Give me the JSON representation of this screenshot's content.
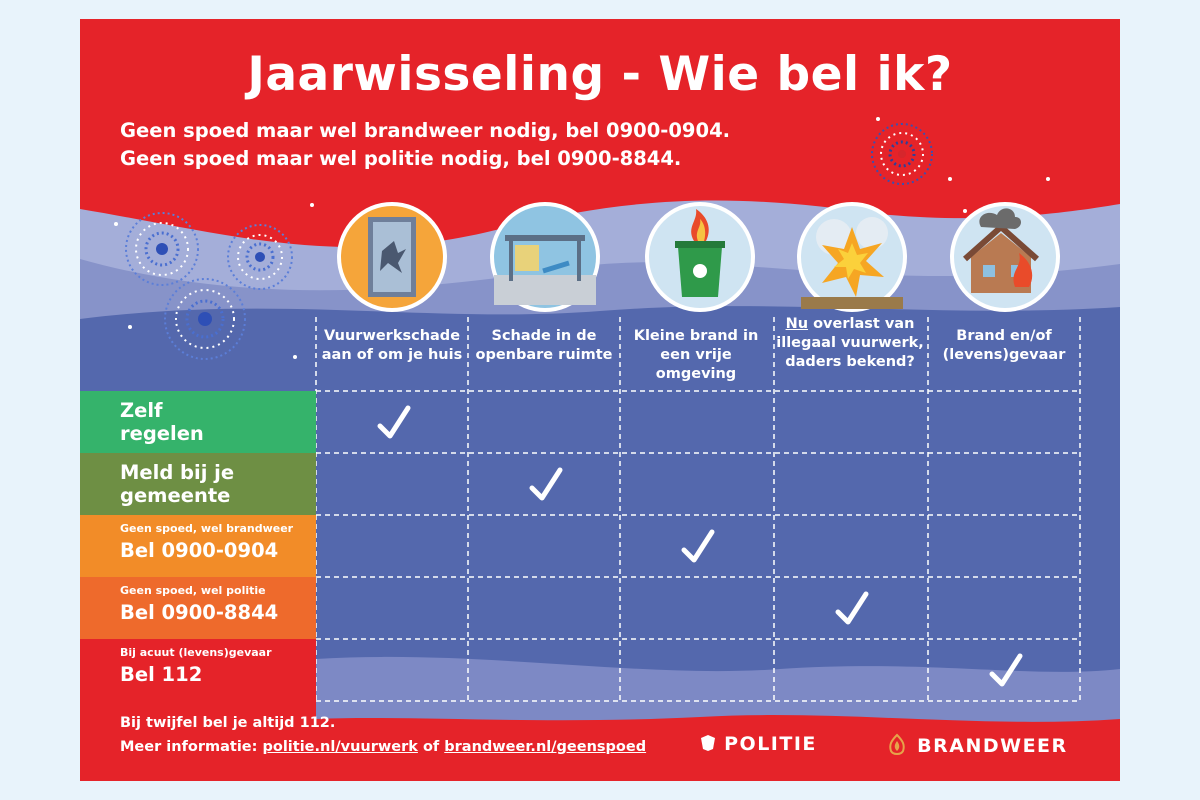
{
  "title": "Jaarwisseling - Wie bel ik?",
  "subtitle_lines": [
    "Geen spoed maar wel brandweer nodig, bel 0900-0904.",
    "Geen spoed maar wel politie nodig, bel 0900-8844."
  ],
  "columns": [
    {
      "icon": "broken-window-icon",
      "line1": "Vuurwerkschade",
      "line2": "aan of om je huis",
      "line3": "",
      "underline": ""
    },
    {
      "icon": "bus-stop-damage-icon",
      "line1": "Schade in de",
      "line2": "openbare ruimte",
      "line3": "",
      "underline": ""
    },
    {
      "icon": "trash-bin-fire-icon",
      "line1": "Kleine brand in",
      "line2": "een vrije omgeving",
      "line3": "",
      "underline": ""
    },
    {
      "icon": "fireworks-explosion-icon",
      "line1": " overlast van",
      "line2": "illegaal vuurwerk,",
      "line3": "daders bekend?",
      "underline": "Nu"
    },
    {
      "icon": "house-fire-icon",
      "line1": "Brand en/of",
      "line2": "(levens)gevaar",
      "line3": "",
      "underline": ""
    }
  ],
  "rows": [
    {
      "small": "",
      "line1": "Zelf",
      "line2": "regelen",
      "color": "#35b36b",
      "check_column": 1
    },
    {
      "small": "",
      "line1": "Meld bij je",
      "line2": "gemeente",
      "color": "#6e8f44",
      "check_column": 2
    },
    {
      "small": "Geen spoed, wel brandweer",
      "line1": "Bel 0900-0904",
      "line2": "",
      "color": "#f28c28",
      "check_column": 3
    },
    {
      "small": "Geen spoed, wel politie",
      "line1": "Bel 0900-8844",
      "line2": "",
      "color": "#ee6a2c",
      "check_column": 4
    },
    {
      "small": "Bij acuut (levens)gevaar",
      "line1": "Bel 112",
      "line2": "",
      "color": "#e52329",
      "check_column": 5
    }
  ],
  "footer": {
    "line1": "Bij twijfel bel je altijd 112.",
    "line2_prefix": "Meer informatie: ",
    "link1": "politie.nl/vuurwerk",
    "connector": " of ",
    "link2": "brandweer.nl/geenspoed"
  },
  "logos": {
    "politie": "POLITIE",
    "brandweer": "BRANDWEER"
  },
  "colors": {
    "red": "#e52329",
    "blue": "#5468ad",
    "wave_light": "#9aa4d4",
    "check": "#ffffff"
  }
}
